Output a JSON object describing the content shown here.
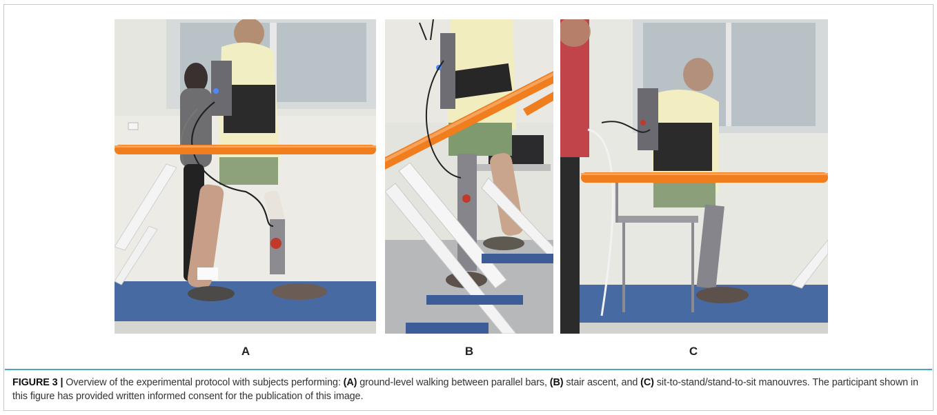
{
  "figure": {
    "panels": [
      {
        "id": "a",
        "label": "A",
        "image_subject": "ground-level walking between parallel bars"
      },
      {
        "id": "b",
        "label": "B",
        "image_subject": "stair ascent"
      },
      {
        "id": "c",
        "label": "C",
        "image_subject": "sit-to-stand manouvre"
      }
    ],
    "caption": {
      "figure_id": "FIGURE 3 |",
      "intro": " Overview of the experimental protocol with subjects performing: ",
      "tag_a": "(A)",
      "text_a": " ground-level walking between parallel bars, ",
      "tag_b": "(B)",
      "text_b": " stair ascent, and ",
      "tag_c": "(C)",
      "text_c": " sit-to-stand/stand-to-sit manouvres. The participant shown in this figure has provided written informed consent for the publication of this image."
    },
    "colors": {
      "bar_orange": "#f07d1e",
      "wall": "#e9e9e4",
      "floor_blue": "#3f5f9a",
      "shirt_yellow": "#f2eec0",
      "frame_white": "#f2f2f2",
      "caption_rule": "#4aa3c0"
    }
  }
}
